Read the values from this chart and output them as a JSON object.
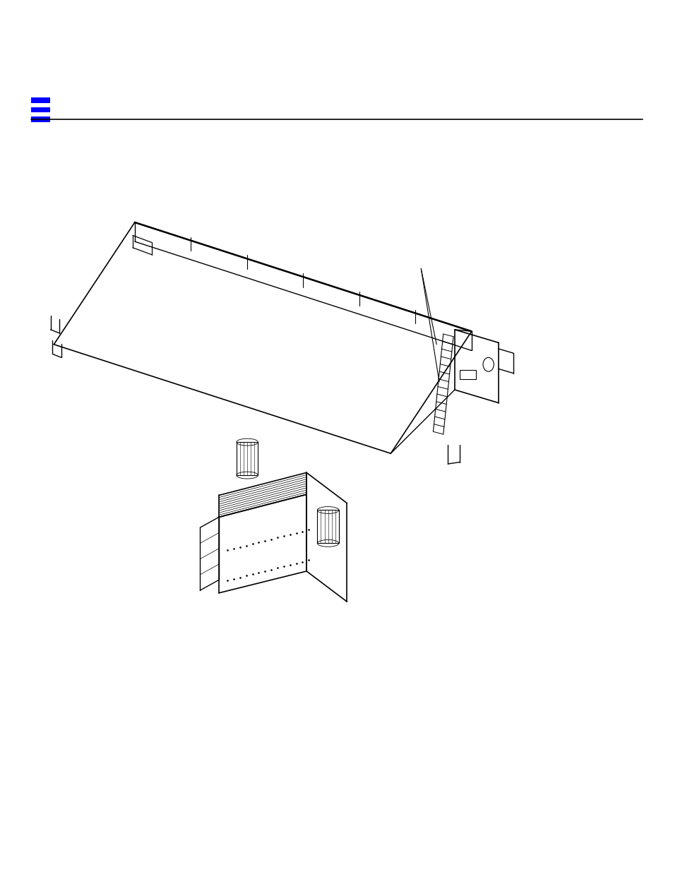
{
  "background_color": "#ffffff",
  "line_color": "#000000",
  "blue_color": "#0000ff",
  "fig_width": 9.54,
  "fig_height": 12.35,
  "dpi": 100
}
